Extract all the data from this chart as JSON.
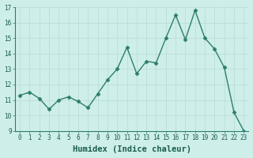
{
  "x": [
    0,
    1,
    2,
    3,
    4,
    5,
    6,
    7,
    8,
    9,
    10,
    11,
    12,
    13,
    14,
    15,
    16,
    17,
    18,
    19,
    20,
    21,
    22,
    23
  ],
  "y": [
    11.3,
    11.5,
    11.1,
    10.4,
    11.0,
    11.2,
    10.9,
    10.5,
    11.4,
    12.3,
    13.0,
    14.4,
    12.7,
    13.5,
    13.4,
    15.0,
    16.5,
    14.9,
    16.8,
    15.0,
    14.3,
    13.1,
    10.2,
    9.0
  ],
  "line_color": "#2e7d6e",
  "marker": "D",
  "marker_size": 2.5,
  "bg_color": "#ceeee9",
  "grid_color": "#b8dbd6",
  "xlabel": "Humidex (Indice chaleur)",
  "ylim": [
    9,
    17
  ],
  "xlim": [
    -0.5,
    23.5
  ],
  "yticks": [
    9,
    10,
    11,
    12,
    13,
    14,
    15,
    16,
    17
  ],
  "xtick_labels": [
    "0",
    "1",
    "2",
    "3",
    "4",
    "5",
    "6",
    "7",
    "8",
    "9",
    "10",
    "11",
    "12",
    "13",
    "14",
    "15",
    "16",
    "17",
    "18",
    "19",
    "20",
    "21",
    "22",
    "23"
  ],
  "tick_fontsize": 5.5,
  "xlabel_fontsize": 7.5,
  "linewidth": 1.0
}
